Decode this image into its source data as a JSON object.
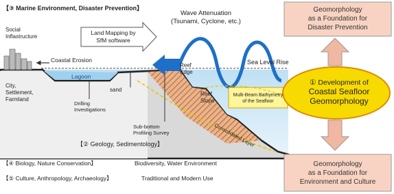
{
  "sections": {
    "marine": "【③ Marine Environment, Disaster Prevention】",
    "geology": "【② Geology, Sedimentology】",
    "biology": {
      "title": "【④ Biology, Nature Conservation】",
      "note": "Biodiversity, Water Environment"
    },
    "culture": {
      "title": "【⑤ Culture, Anthropology, Archaeology】",
      "note": "Traditional and Modern Use"
    }
  },
  "labels": {
    "social": [
      "Social",
      "Inflastructure"
    ],
    "land_mapping": [
      "Land Mapping by",
      "SfM software"
    ],
    "wave": [
      "Wave Attenuation",
      "(Tsunami, Cyclone, etc.)"
    ],
    "erosion": "Coastal Erosion",
    "sea_level": "Sea Level Rise",
    "lagoon": "Lagoon",
    "sand": "sand",
    "city": [
      "City,",
      "Settlement,",
      "Farmland"
    ],
    "drilling": [
      "Drilling",
      "Investigations"
    ],
    "reef_edge": [
      "Reef",
      "Edge"
    ],
    "reef_slope": [
      "Reef",
      "Slope"
    ],
    "bathymetry": [
      "Multi-Beam Bathymetry",
      "of the Seafloor"
    ],
    "sub_bottom": [
      "Sub-bottom",
      "Profiling Survey"
    ],
    "consolidated": "Consolidated Layer"
  },
  "boxes": {
    "disaster": [
      "Geomorphology",
      "as a Foundation for",
      "Disaster Prevention"
    ],
    "center": [
      "① Development of",
      "Coastal Seafloor",
      "Geomorphology"
    ],
    "environment": [
      "Geomorphology",
      "as a Foundation for",
      "Environment and Culture"
    ]
  }
}
